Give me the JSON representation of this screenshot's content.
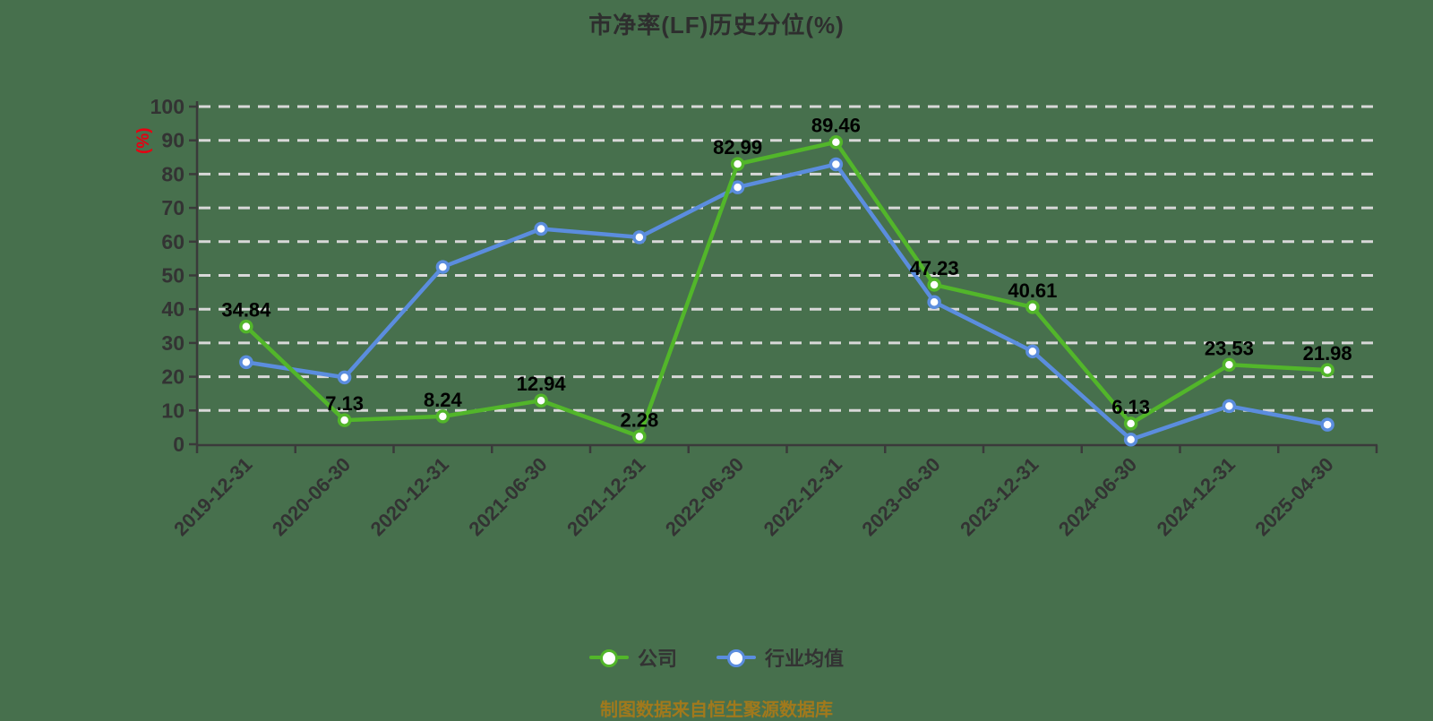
{
  "title": "市净率(LF)历史分位(%)",
  "footer": "制图数据来自恒生聚源数据库",
  "legend": [
    {
      "label": "公司",
      "color": "#52b62a"
    },
    {
      "label": "行业均值",
      "color": "#5b8dde"
    }
  ],
  "colors": {
    "background": "#47704d",
    "axis": "#3a3a3a",
    "grid": "#d8d8d8",
    "tick_text": "#333333",
    "data_label": "#000000",
    "unit_label": "#e60012",
    "footer_text": "#a1791c"
  },
  "chart_data": {
    "type": "line",
    "title": "市净率(LF)历史分位(%)",
    "xlabel": "",
    "ylabel": "(%)",
    "ylim": [
      0,
      100
    ],
    "y_tick_labels": [
      "0",
      "10",
      "20",
      "30",
      "40",
      "50",
      "60",
      "70",
      "80",
      "90",
      "100"
    ],
    "grid": "horizontal-dashed",
    "legend_position": "bottom",
    "categories": [
      "2019-12-31",
      "2020-06-30",
      "2020-12-31",
      "2021-06-30",
      "2021-12-31",
      "2022-06-30",
      "2022-12-31",
      "2023-06-30",
      "2023-12-31",
      "2024-06-30",
      "2024-12-31",
      "2025-04-30"
    ],
    "series": [
      {
        "name": "公司",
        "color": "#52b62a",
        "values": [
          34.84,
          7.13,
          8.24,
          12.94,
          2.28,
          82.99,
          89.46,
          47.23,
          40.61,
          6.13,
          23.53,
          21.98
        ],
        "data_labels": [
          "34.84",
          "7.13",
          "8.24",
          "12.94",
          "2.28",
          "82.99",
          "89.46",
          "47.23",
          "40.61",
          "6.13",
          "23.53",
          "21.98"
        ]
      },
      {
        "name": "行业均值",
        "color": "#5b8dde",
        "values": [
          24.3,
          19.8,
          52.5,
          63.8,
          61.3,
          76.1,
          82.9,
          42.1,
          27.5,
          1.4,
          11.3,
          5.8
        ],
        "data_labels": null
      }
    ]
  }
}
